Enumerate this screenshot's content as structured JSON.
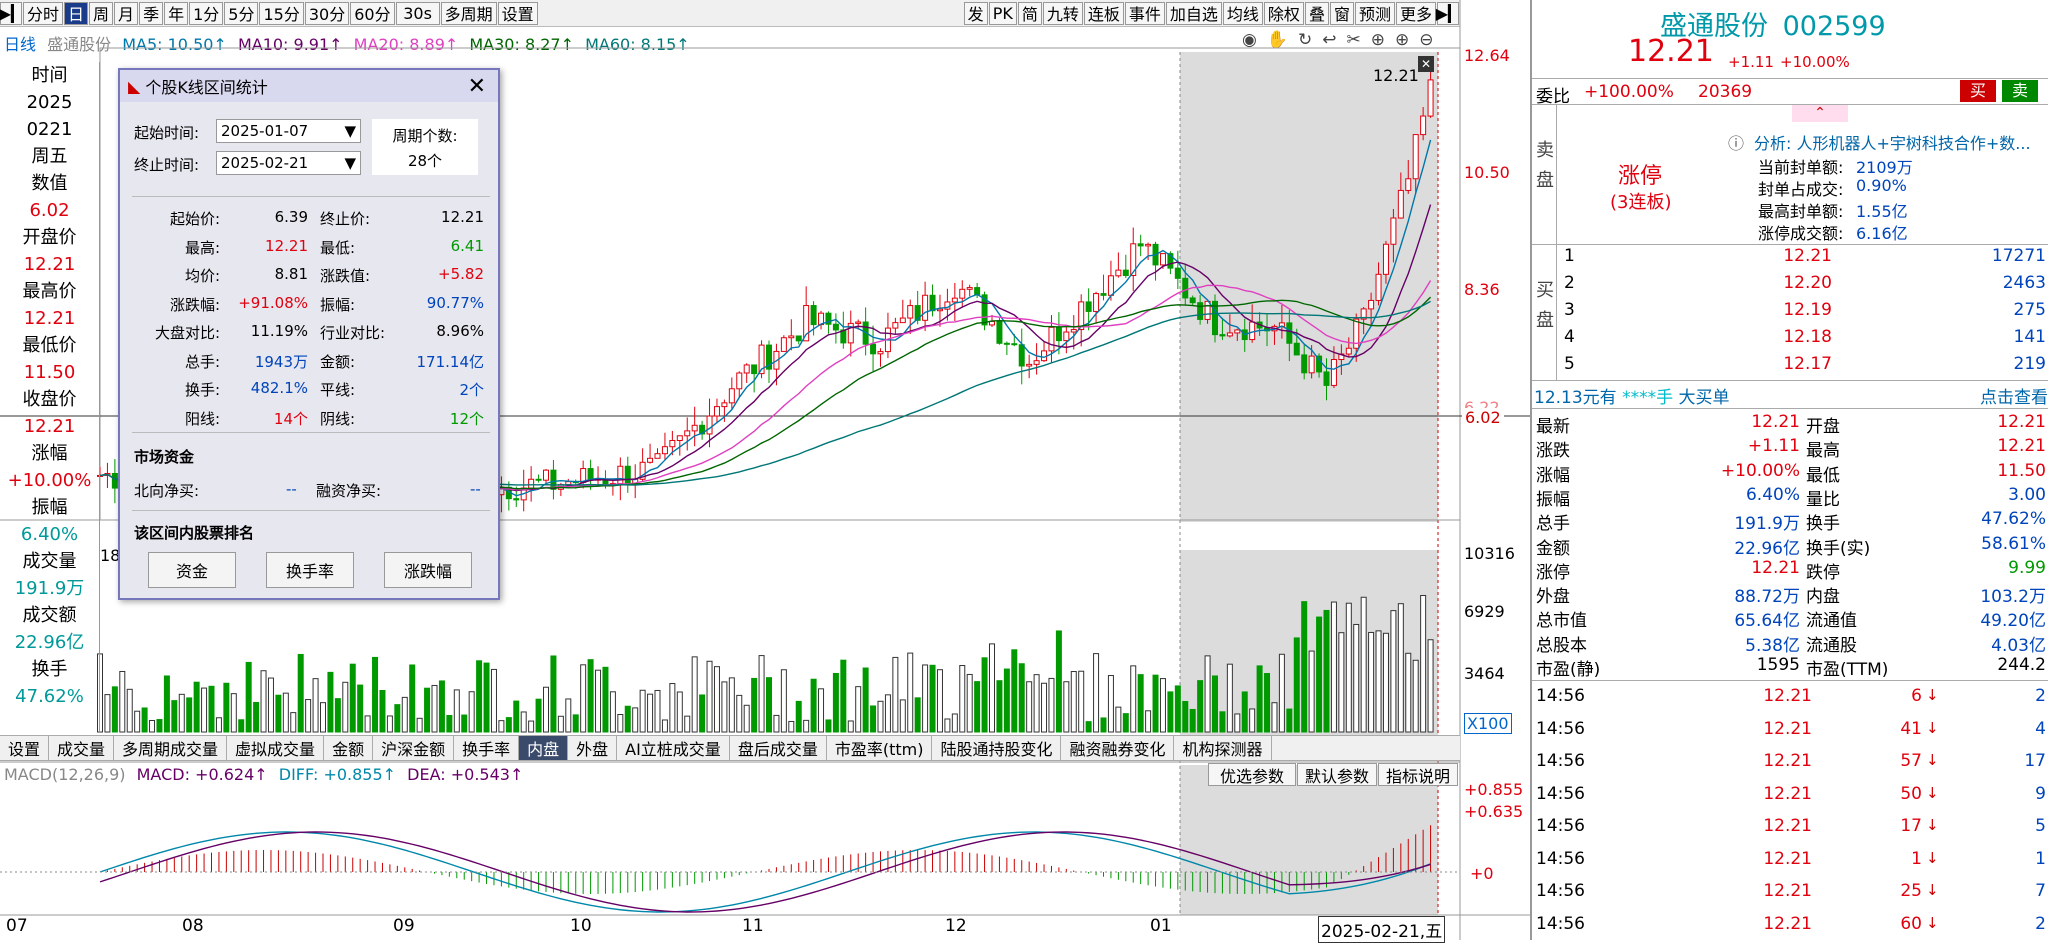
{
  "toolbar": {
    "left": [
      "分时",
      "日",
      "周",
      "月",
      "季",
      "年",
      "1分",
      "5分",
      "15分",
      "30分",
      "60分",
      "30s",
      "多周期",
      "设置"
    ],
    "right": [
      "发",
      "PK",
      "简",
      "九转",
      "连板",
      "事件",
      "加自选",
      "均线",
      "除权",
      "叠",
      "窗",
      "预测",
      "更多"
    ]
  },
  "ma_legend": {
    "period": "日线",
    "name": "盛通股份",
    "ma5": "MA5: 10.50↑",
    "ma10": "MA10: 9.91↑",
    "ma20": "MA20: 8.89↑",
    "ma30": "MA30: 8.27↑",
    "ma60": "MA60: 8.15↑"
  },
  "price_axis": [
    "12.64",
    "10.50",
    "8.36",
    "6.22",
    "6.02"
  ],
  "last_price_label": "12.21",
  "vol_axis": [
    "10316",
    "6929",
    "3464",
    "X100"
  ],
  "macd_legend": {
    "title": "MACD(12,26,9)",
    "macd": "MACD: +0.624↑",
    "diff": "DIFF: +0.855↑",
    "dea": "DEA: +0.543↑"
  },
  "macd_axis": [
    "+0.855",
    "+0.635",
    "+0"
  ],
  "macd_buttons": [
    "优选参数",
    "默认参数",
    "指标说明"
  ],
  "time_axis": [
    "07",
    "08",
    "09",
    "10",
    "11",
    "12",
    "01"
  ],
  "time_cursor": "2025-02-21,五",
  "vol_axis_partial": "18",
  "left_panel": [
    {
      "label": "时间",
      "value": "2025"
    },
    {
      "label": "",
      "value": "0221"
    },
    {
      "label": "",
      "value": "周五"
    },
    {
      "label": "数值",
      "value": "6.02",
      "cls": "red"
    },
    {
      "label": "开盘价",
      "value": "12.21",
      "cls": "red"
    },
    {
      "label": "最高价",
      "value": "12.21",
      "cls": "red"
    },
    {
      "label": "最低价",
      "value": "11.50",
      "cls": "red"
    },
    {
      "label": "收盘价",
      "value": "12.21",
      "cls": "red"
    },
    {
      "label": "涨幅",
      "value": "+10.00%",
      "cls": "red"
    },
    {
      "label": "振幅",
      "value": "6.40%",
      "cls": "teal"
    },
    {
      "label": "成交量",
      "value": "191.9万",
      "cls": "teal"
    },
    {
      "label": "成交额",
      "value": "22.96亿",
      "cls": "teal"
    },
    {
      "label": "换手",
      "value": "47.62%",
      "cls": "teal"
    }
  ],
  "indicator_tabs": [
    "设置",
    "成交量",
    "多周期成交量",
    "虚拟成交量",
    "金额",
    "沪深金额",
    "换手率",
    "内盘",
    "外盘",
    "AI立桩成交量",
    "盘后成交量",
    "市盈率(ttm)",
    "陆股通持股变化",
    "融资融券变化",
    "机构探测器"
  ],
  "dialog": {
    "title": "个股K线区间统计",
    "start_label": "起始时间:",
    "start_value": "2025-01-07",
    "end_label": "终止时间:",
    "end_value": "2025-02-21",
    "period_label": "周期个数:",
    "period_value": "28个",
    "stats": [
      [
        "起始价:",
        "6.39",
        "终止价:",
        "12.21"
      ],
      [
        "最高:",
        "12.21",
        "最低:",
        "6.41"
      ],
      [
        "均价:",
        "8.81",
        "涨跌值:",
        "+5.82"
      ],
      [
        "涨跌幅:",
        "+91.08%",
        "振幅:",
        "90.77%"
      ],
      [
        "大盘对比:",
        "11.19%",
        "行业对比:",
        "8.96%"
      ],
      [
        "总手:",
        "1943万",
        "金额:",
        "171.14亿"
      ],
      [
        "换手:",
        "482.1%",
        "平线:",
        "2个"
      ],
      [
        "阳线:",
        "14个",
        "阴线:",
        "12个"
      ]
    ],
    "fund_title": "市场资金",
    "north_label": "北向净买:",
    "north_value": "--",
    "margin_label": "融资净买:",
    "margin_value": "--",
    "rank_title": "该区间内股票排名",
    "buttons": [
      "资金",
      "换手率",
      "涨跌幅"
    ]
  },
  "right": {
    "name": "盛通股份",
    "code": "002599",
    "price": "12.21",
    "change": "+1.11",
    "change_pct": "+10.00%",
    "weibi_label": "委比",
    "weibi_value": "+100.00%",
    "weicha": "20369",
    "buy_btn": "买",
    "sell_btn": "卖",
    "sell_side": "卖盘",
    "limit_text": "涨停",
    "limit_sub": "(3连板)",
    "analysis": "分析: 人形机器人+宇树科技合作+数...",
    "seal_info": [
      [
        "当前封单额:",
        "2109万"
      ],
      [
        "封单占成交:",
        "0.90%"
      ],
      [
        "最高封单额:",
        "1.55亿"
      ],
      [
        "涨停成交额:",
        "6.16亿"
      ]
    ],
    "buy_side": "买盘",
    "bids": [
      [
        "1",
        "12.21",
        "17271"
      ],
      [
        "2",
        "12.20",
        "2463"
      ],
      [
        "3",
        "12.19",
        "275"
      ],
      [
        "4",
        "12.18",
        "141"
      ],
      [
        "5",
        "12.17",
        "219"
      ]
    ],
    "bigorder_a": "12.13元有",
    "bigorder_b": "****手",
    "bigorder_c": "大买单",
    "bigorder_link": "点击查看",
    "quote": [
      [
        "最新",
        "12.21",
        "开盘",
        "12.21"
      ],
      [
        "涨跌",
        "+1.11",
        "最高",
        "12.21"
      ],
      [
        "涨幅",
        "+10.00%",
        "最低",
        "11.50"
      ],
      [
        "振幅",
        "6.40%",
        "量比",
        "3.00"
      ],
      [
        "总手",
        "191.9万",
        "换手",
        "47.62%"
      ],
      [
        "金额",
        "22.96亿",
        "换手(实)",
        "58.61%"
      ],
      [
        "涨停",
        "12.21",
        "跌停",
        "9.99"
      ],
      [
        "外盘",
        "88.72万",
        "内盘",
        "103.2万"
      ],
      [
        "总市值",
        "65.64亿",
        "流通值",
        "49.20亿"
      ],
      [
        "总股本",
        "5.38亿",
        "流通股",
        "4.03亿"
      ],
      [
        "市盈(静)",
        "1595",
        "市盈(TTM)",
        "244.2"
      ]
    ],
    "ticks": [
      [
        "14:56",
        "12.21",
        "6",
        "2"
      ],
      [
        "14:56",
        "12.21",
        "41",
        "4"
      ],
      [
        "14:56",
        "12.21",
        "57",
        "17"
      ],
      [
        "14:56",
        "12.21",
        "50",
        "9"
      ],
      [
        "14:56",
        "12.21",
        "17",
        "5"
      ],
      [
        "14:56",
        "12.21",
        "1",
        "1"
      ],
      [
        "14:56",
        "12.21",
        "25",
        "7"
      ],
      [
        "14:56",
        "12.21",
        "60",
        "2"
      ]
    ]
  }
}
